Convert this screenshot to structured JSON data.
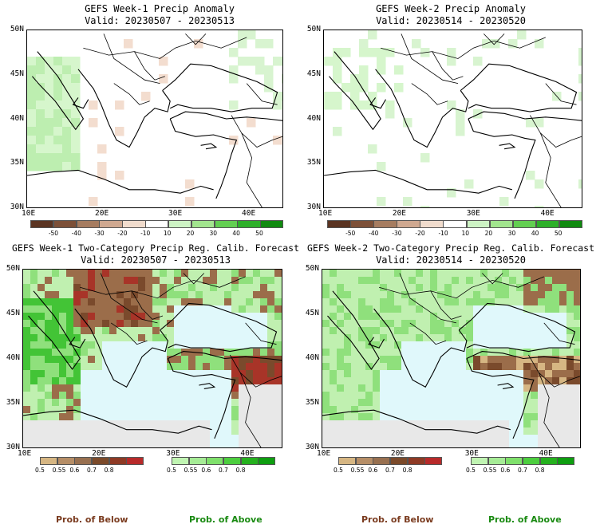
{
  "panels": [
    {
      "title": "GEFS Week-1 Precip Anomaly",
      "valid": "Valid: 20230507 - 20230513"
    },
    {
      "title": "GEFS Week-2 Precip Anomaly",
      "valid": "Valid: 20230514 - 20230520"
    },
    {
      "title": "GEFS Week-1 Two-Category Precip Reg. Calib. Forecast",
      "valid": "Valid: 20230507 - 20230513"
    },
    {
      "title": "GEFS Week-2 Two-Category Precip Reg. Calib. Forecast",
      "valid": "Valid: 20230514 - 20230520"
    }
  ],
  "axes": {
    "lat_labels": [
      "50N",
      "45N",
      "40N",
      "35N",
      "30N"
    ],
    "lon_labels": [
      "10E",
      "20E",
      "30E",
      "40E"
    ]
  },
  "anomaly_colorbar": {
    "labels": [
      "-50",
      "-40",
      "-30",
      "-20",
      "-10",
      "10",
      "20",
      "30",
      "40",
      "50"
    ],
    "colors": [
      "#5b3422",
      "#7d5038",
      "#a67c60",
      "#cfa890",
      "#f1dccd",
      "#ffffff",
      "#cdf3c4",
      "#a2e58e",
      "#63cf52",
      "#2eb02a",
      "#108a10"
    ]
  },
  "prob_colorbar": {
    "below_labels": [
      "0.5",
      "0.55",
      "0.6",
      "0.7",
      "0.8"
    ],
    "above_labels": [
      "0.5",
      "0.55",
      "0.6",
      "0.7",
      "0.8"
    ],
    "below_colors": [
      "#d6b683",
      "#b68e67",
      "#987050",
      "#7b4a2a",
      "#8e3a25",
      "#b82a2a"
    ],
    "above_colors": [
      "#c0f4b2",
      "#a6ec96",
      "#7fe06b",
      "#4dce3f",
      "#25b11e",
      "#0e9e10"
    ]
  },
  "footer": {
    "below": "Prob. of Below",
    "above": "Prob. of Above"
  },
  "colors": {
    "land_light": "#c0f0b0",
    "land_mid": "#8fe07c",
    "land_dark": "#43c436",
    "brown": "#9b6d4a",
    "dark_brown": "#7a4a2c",
    "red_brown": "#a83428",
    "water": "#e0f8fb",
    "gray": "#e8e8e8"
  }
}
